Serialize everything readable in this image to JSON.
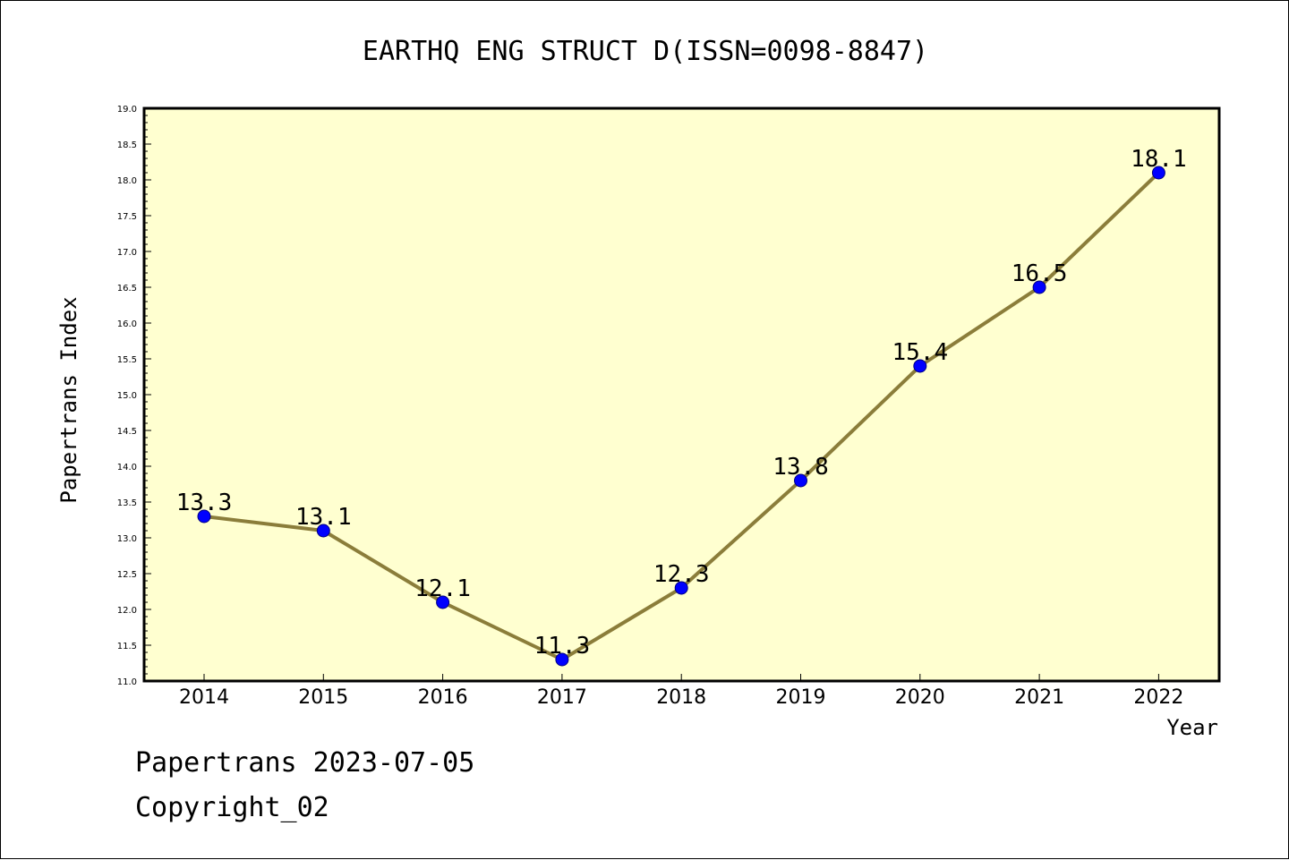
{
  "chart_data": {
    "type": "line",
    "title": "EARTHQ ENG STRUCT D(ISSN=0098-8847)",
    "xlabel": "Year",
    "ylabel": "Papertrans Index",
    "categories": [
      "2014",
      "2015",
      "2016",
      "2017",
      "2018",
      "2019",
      "2020",
      "2021",
      "2022"
    ],
    "series": [
      {
        "values": [
          13.3,
          13.1,
          12.1,
          11.3,
          12.3,
          13.8,
          15.4,
          16.5,
          18.1
        ],
        "data_labels": [
          "13.3",
          "13.1",
          "12.1",
          "11.3",
          "12.3",
          "13.8",
          "15.4",
          "16.5",
          "18.1"
        ]
      }
    ],
    "ylim": [
      11.0,
      19.0
    ],
    "yticks": [
      "11.0",
      "11.5",
      "12.0",
      "12.5",
      "13.0",
      "13.5",
      "14.0",
      "14.5",
      "15.0",
      "15.5",
      "16.0",
      "16.5",
      "17.0",
      "17.5",
      "18.0",
      "18.5",
      "19.0"
    ],
    "grid": false,
    "legend": "none",
    "colors": {
      "plot_background": "#ffffd0",
      "line": "#8b7d3a",
      "marker": "#0000ff",
      "axis": "#000000"
    }
  },
  "footer": {
    "line1": "Papertrans 2023-07-05",
    "line2": "Copyright_02"
  }
}
